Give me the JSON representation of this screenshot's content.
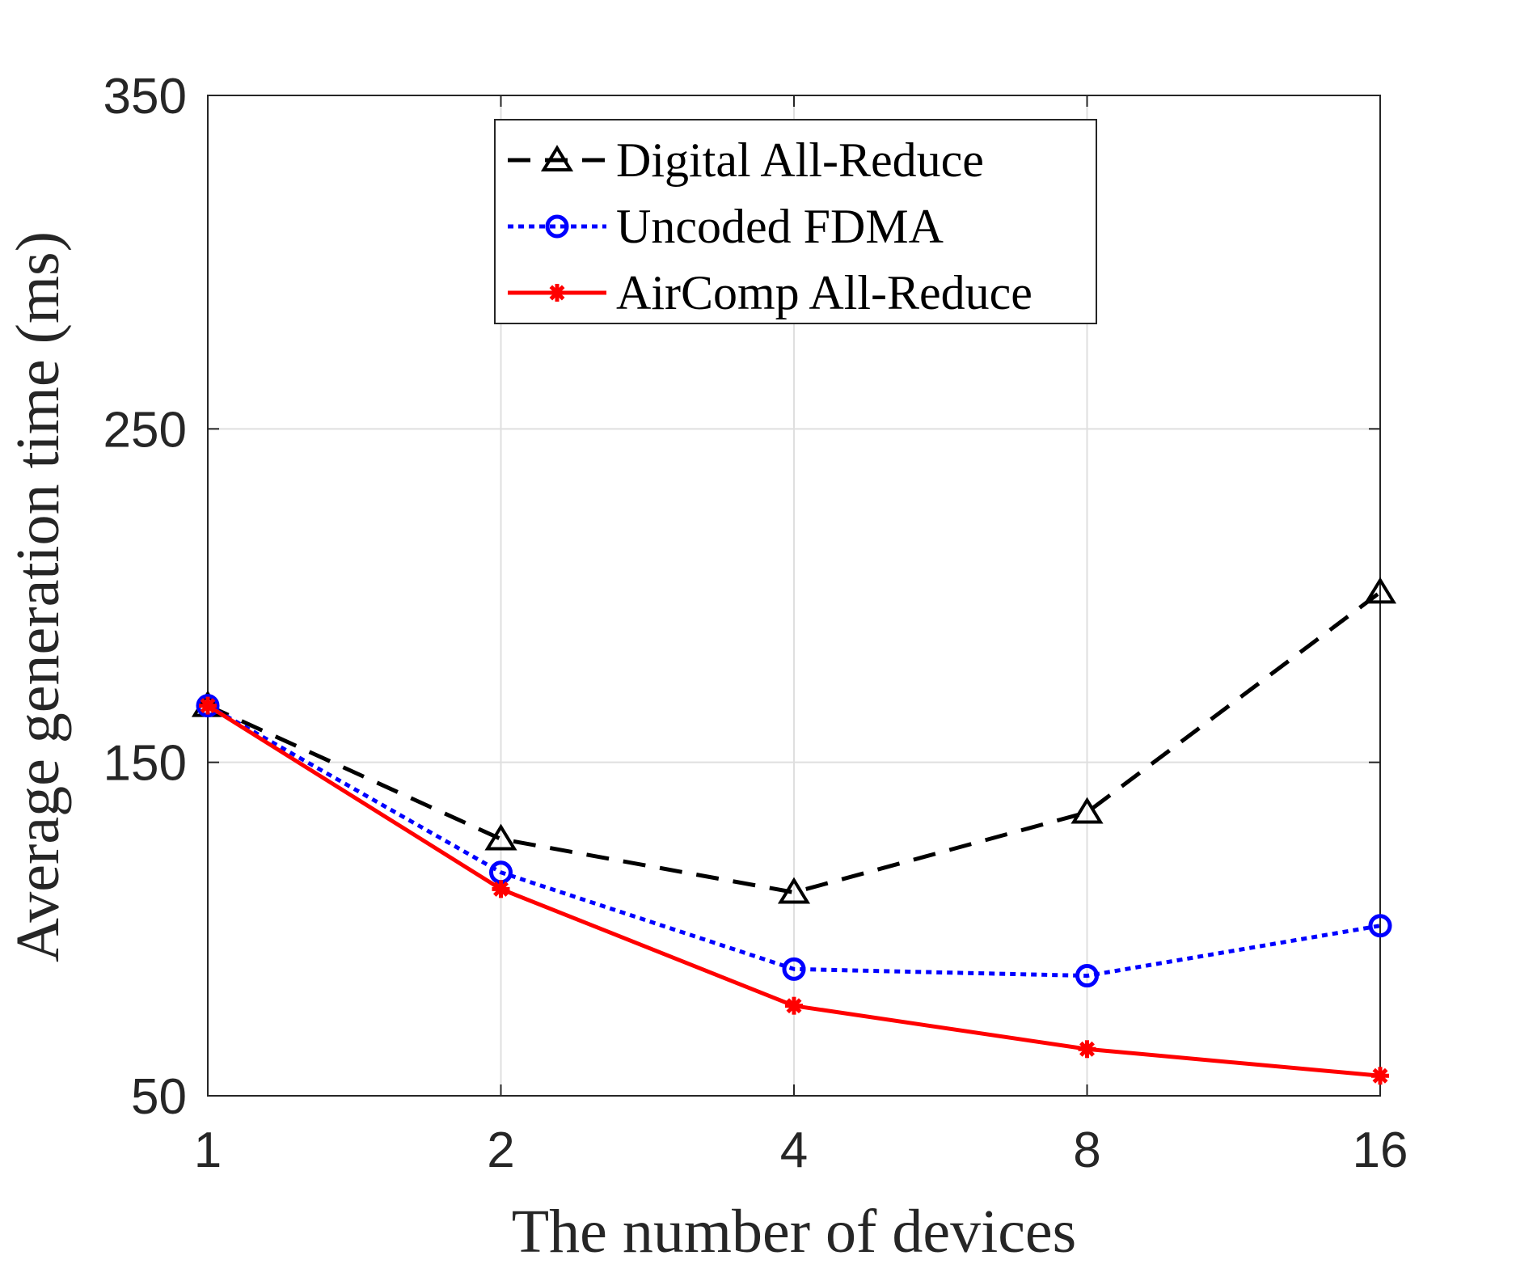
{
  "chart_data": {
    "type": "line",
    "title": "",
    "xlabel": "The number of devices",
    "ylabel": "Average generation time (ms)",
    "categories": [
      "1",
      "2",
      "4",
      "8",
      "16"
    ],
    "ylim": [
      50,
      350
    ],
    "yticks": [
      50,
      150,
      250,
      350
    ],
    "grid": true,
    "legend_position": "top-center",
    "series": [
      {
        "name": "Digital All-Reduce",
        "color": "#000000",
        "line_style": "dashed",
        "marker": "triangle",
        "values": [
          167,
          127,
          111,
          135,
          201
        ]
      },
      {
        "name": "Uncoded FDMA",
        "color": "#0000ff",
        "line_style": "dotted",
        "marker": "circle",
        "values": [
          167,
          117,
          88,
          86,
          101
        ]
      },
      {
        "name": "AirComp All-Reduce",
        "color": "#ff0000",
        "line_style": "solid",
        "marker": "asterisk",
        "values": [
          167,
          112,
          77,
          64,
          56
        ]
      }
    ]
  }
}
